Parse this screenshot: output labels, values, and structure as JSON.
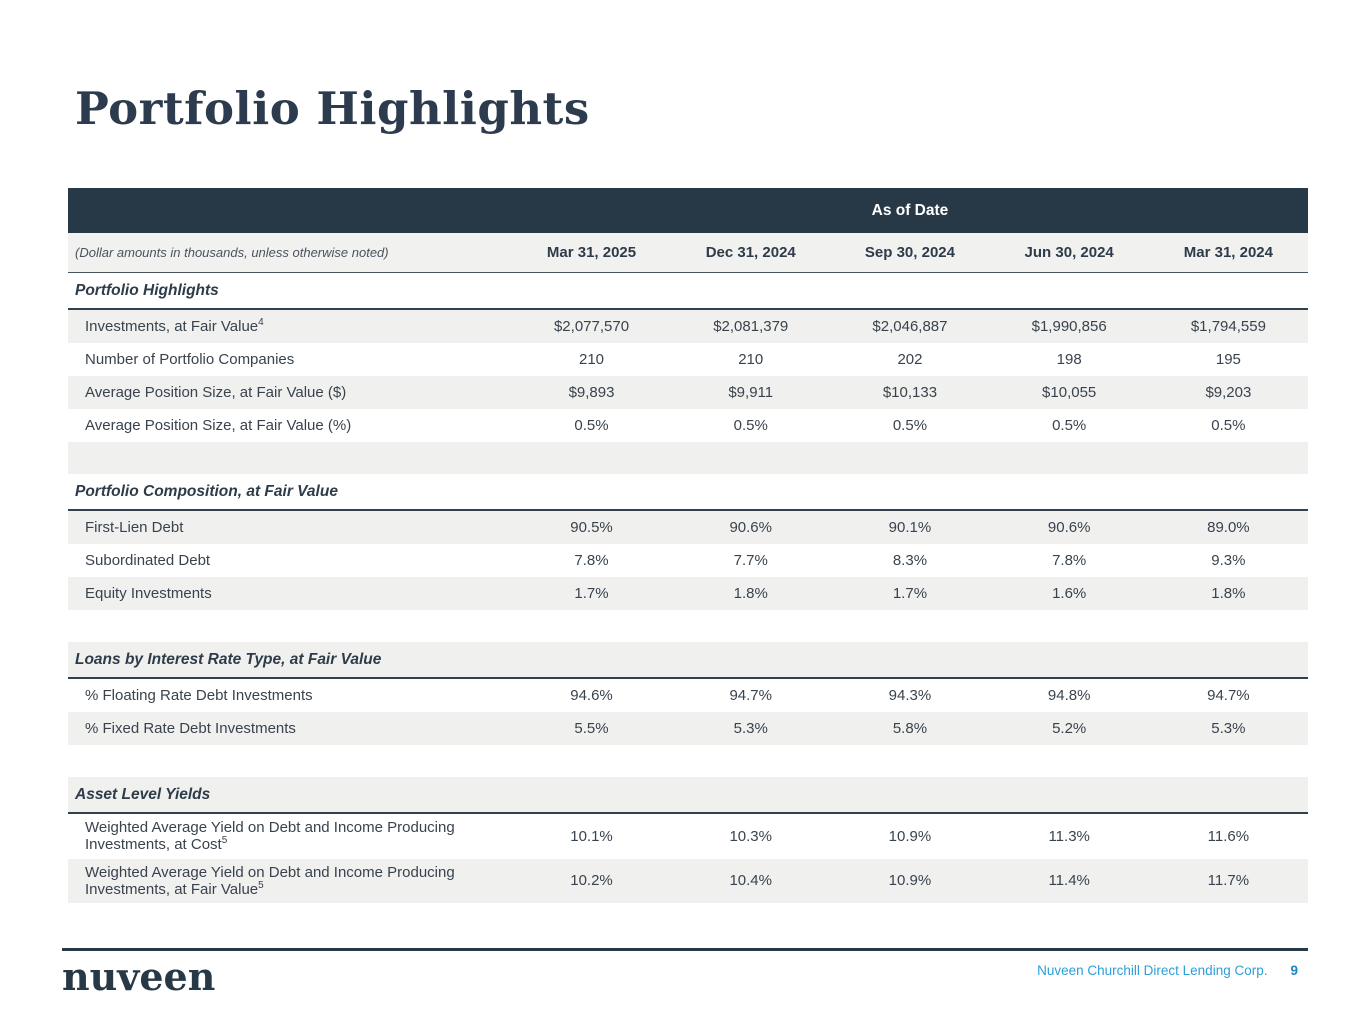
{
  "page": {
    "title": "Portfolio Highlights"
  },
  "colors": {
    "header_band_navy": "#273847",
    "section_border_navy": "#31404f",
    "shaded_row_gray": "#f0f0ef",
    "text_navy": "#2e3c49",
    "footer_blue": "#2ba0d8",
    "page_number_blue": "#1d86c0"
  },
  "table": {
    "banner": "As of Date",
    "note": "(Dollar amounts in thousands, unless otherwise noted)",
    "columns": [
      "Mar 31, 2025",
      "Dec 31, 2024",
      "Sep 30, 2024",
      "Jun 30, 2024",
      "Mar 31, 2024"
    ],
    "sections": [
      {
        "title": "Portfolio Highlights",
        "rows": [
          {
            "label": "Investments, at Fair Value",
            "sup": "4",
            "values": [
              "$2,077,570",
              "$2,081,379",
              "$2,046,887",
              "$1,990,856",
              "$1,794,559"
            ]
          },
          {
            "label": "Number of Portfolio Companies",
            "sup": "",
            "values": [
              "210",
              "210",
              "202",
              "198",
              "195"
            ]
          },
          {
            "label": "Average Position Size, at Fair Value ($)",
            "sup": "",
            "values": [
              "$9,893",
              "$9,911",
              "$10,133",
              "$10,055",
              "$9,203"
            ]
          },
          {
            "label": "Average Position Size, at Fair Value (%)",
            "sup": "",
            "values": [
              "0.5%",
              "0.5%",
              "0.5%",
              "0.5%",
              "0.5%"
            ]
          }
        ]
      },
      {
        "title": "Portfolio Composition, at Fair Value",
        "rows": [
          {
            "label": "First-Lien Debt",
            "sup": "",
            "values": [
              "90.5%",
              "90.6%",
              "90.1%",
              "90.6%",
              "89.0%"
            ]
          },
          {
            "label": "Subordinated Debt",
            "sup": "",
            "values": [
              "7.8%",
              "7.7%",
              "8.3%",
              "7.8%",
              "9.3%"
            ]
          },
          {
            "label": "Equity Investments",
            "sup": "",
            "values": [
              "1.7%",
              "1.8%",
              "1.7%",
              "1.6%",
              "1.8%"
            ]
          }
        ]
      },
      {
        "title": "Loans by Interest Rate Type, at Fair Value",
        "rows": [
          {
            "label": "% Floating Rate Debt Investments",
            "sup": "",
            "values": [
              "94.6%",
              "94.7%",
              "94.3%",
              "94.8%",
              "94.7%"
            ]
          },
          {
            "label": "% Fixed Rate Debt Investments",
            "sup": "",
            "values": [
              "5.5%",
              "5.3%",
              "5.8%",
              "5.2%",
              "5.3%"
            ]
          }
        ]
      },
      {
        "title": "Asset Level Yields",
        "rows": [
          {
            "label": "Weighted Average Yield on Debt and Income Producing Investments, at Cost",
            "sup": "5",
            "values": [
              "10.1%",
              "10.3%",
              "10.9%",
              "11.3%",
              "11.6%"
            ]
          },
          {
            "label": "Weighted Average Yield on Debt and Income Producing Investments, at Fair Value",
            "sup": "5",
            "values": [
              "10.2%",
              "10.4%",
              "10.9%",
              "11.4%",
              "11.7%"
            ]
          }
        ]
      }
    ]
  },
  "footer": {
    "logo": "nuveen",
    "company": "Nuveen Churchill Direct Lending Corp.",
    "page_number": "9"
  }
}
